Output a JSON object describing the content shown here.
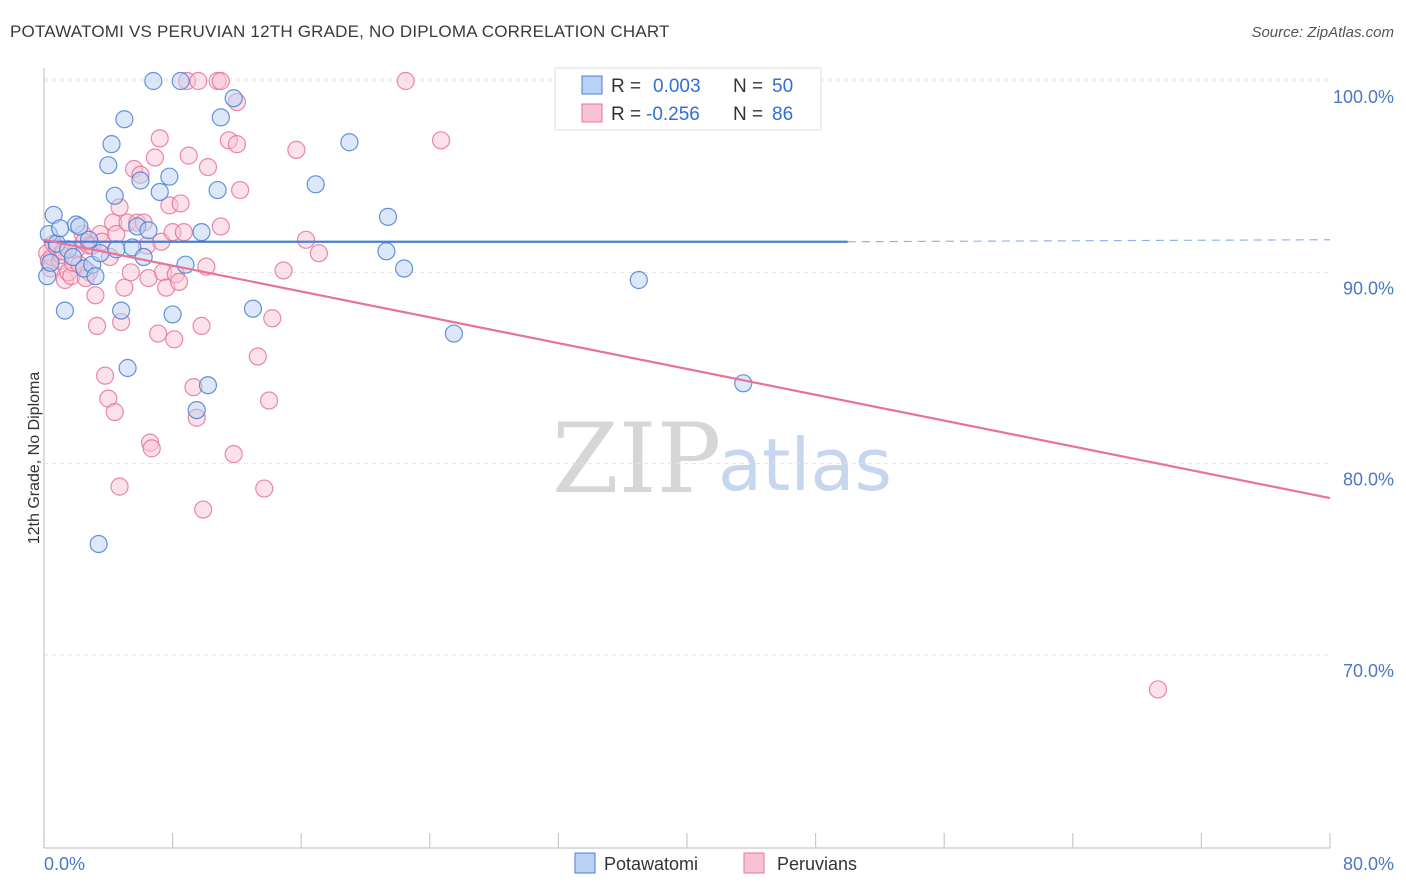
{
  "header": {
    "title": "POTAWATOMI VS PERUVIAN 12TH GRADE, NO DIPLOMA CORRELATION CHART",
    "source": "Source: ZipAtlas.com"
  },
  "watermark": {
    "zip": "ZIP",
    "atlas": "atlas"
  },
  "colors": {
    "blue": "#4a7fd4",
    "blue_fill": "#b9d1f2",
    "pink": "#e8739a",
    "pink_fill": "#f7c3d3",
    "tick_label": "#4a78c4"
  },
  "legend": {
    "rows": [
      {
        "r_label": "R =",
        "r_value": "0.003",
        "n_label": "N =",
        "n_value": "50"
      },
      {
        "r_label": "R =",
        "r_value": "-0.256",
        "n_label": "N =",
        "n_value": "86"
      }
    ]
  },
  "bottom_legend": {
    "series1": "Potawatomi",
    "series2": "Peruvians"
  },
  "chart_data": {
    "type": "scatter",
    "title": "POTAWATOMI VS PERUVIAN 12TH GRADE, NO DIPLOMA CORRELATION CHART",
    "xlabel": "",
    "ylabel": "12th Grade, No Diploma",
    "xlim": [
      0,
      80
    ],
    "ylim": [
      60,
      100.5
    ],
    "x_tick_labels": [
      "0.0%",
      "80.0%"
    ],
    "y_ticks": [
      100,
      90,
      80,
      70
    ],
    "y_tick_labels": [
      "100.0%",
      "90.0%",
      "80.0%",
      "70.0%"
    ],
    "grid": true,
    "series": [
      {
        "name": "Potawatomi",
        "r": 0.003,
        "n": 50,
        "trend": {
          "x": [
            0,
            50
          ],
          "y": [
            91.6,
            91.6
          ],
          "dashed_to": 80
        },
        "points": [
          [
            0.2,
            89.8
          ],
          [
            0.3,
            92.0
          ],
          [
            0.4,
            90.5
          ],
          [
            0.6,
            93.0
          ],
          [
            0.8,
            91.5
          ],
          [
            1.0,
            92.3
          ],
          [
            1.3,
            88.0
          ],
          [
            1.5,
            91.2
          ],
          [
            1.8,
            90.8
          ],
          [
            2.0,
            92.5
          ],
          [
            2.2,
            92.4
          ],
          [
            2.5,
            90.2
          ],
          [
            3.0,
            90.4
          ],
          [
            3.2,
            89.8
          ],
          [
            3.5,
            91.0
          ],
          [
            4.0,
            95.6
          ],
          [
            4.2,
            96.7
          ],
          [
            4.4,
            94.0
          ],
          [
            4.5,
            91.2
          ],
          [
            4.8,
            88.0
          ],
          [
            5.0,
            98.0
          ],
          [
            5.2,
            85.0
          ],
          [
            5.5,
            91.3
          ],
          [
            5.8,
            92.4
          ],
          [
            6.0,
            94.8
          ],
          [
            6.2,
            90.8
          ],
          [
            6.8,
            100.0
          ],
          [
            7.2,
            94.2
          ],
          [
            7.8,
            95.0
          ],
          [
            8.0,
            87.8
          ],
          [
            8.5,
            100.0
          ],
          [
            8.8,
            90.4
          ],
          [
            9.5,
            82.8
          ],
          [
            9.8,
            92.1
          ],
          [
            10.2,
            84.1
          ],
          [
            10.8,
            94.3
          ],
          [
            11.0,
            98.1
          ],
          [
            11.8,
            99.1
          ],
          [
            13.0,
            88.1
          ],
          [
            16.9,
            94.6
          ],
          [
            19.0,
            96.8
          ],
          [
            21.3,
            91.1
          ],
          [
            21.4,
            92.9
          ],
          [
            22.4,
            90.2
          ],
          [
            25.5,
            86.8
          ],
          [
            37.0,
            89.6
          ],
          [
            43.5,
            84.2
          ],
          [
            3.4,
            75.8
          ],
          [
            2.8,
            91.7
          ],
          [
            6.5,
            92.2
          ]
        ]
      },
      {
        "name": "Peruvians",
        "r": -0.256,
        "n": 86,
        "trend": {
          "x": [
            0,
            80
          ],
          "y": [
            91.7,
            78.2
          ]
        },
        "points": [
          [
            0.2,
            91.0
          ],
          [
            0.3,
            90.6
          ],
          [
            0.4,
            90.2
          ],
          [
            0.5,
            90.8
          ],
          [
            0.6,
            91.5
          ],
          [
            0.8,
            91.3
          ],
          [
            1.0,
            90.6
          ],
          [
            1.1,
            90.9
          ],
          [
            1.2,
            91.1
          ],
          [
            1.3,
            89.6
          ],
          [
            1.5,
            90.0
          ],
          [
            1.7,
            89.8
          ],
          [
            1.8,
            90.5
          ],
          [
            2.0,
            91.2
          ],
          [
            2.2,
            90.4
          ],
          [
            2.4,
            92.0
          ],
          [
            2.5,
            91.6
          ],
          [
            2.8,
            90.0
          ],
          [
            2.8,
            91.4
          ],
          [
            3.0,
            91.4
          ],
          [
            3.2,
            88.8
          ],
          [
            3.5,
            92.0
          ],
          [
            3.6,
            91.6
          ],
          [
            3.8,
            84.6
          ],
          [
            4.0,
            83.4
          ],
          [
            4.1,
            90.8
          ],
          [
            4.3,
            92.6
          ],
          [
            4.4,
            82.7
          ],
          [
            4.5,
            92.0
          ],
          [
            4.7,
            93.4
          ],
          [
            4.8,
            87.4
          ],
          [
            5.0,
            89.2
          ],
          [
            5.2,
            92.6
          ],
          [
            5.4,
            90.0
          ],
          [
            5.6,
            95.4
          ],
          [
            5.8,
            92.6
          ],
          [
            6.0,
            95.1
          ],
          [
            6.2,
            92.6
          ],
          [
            6.4,
            91.4
          ],
          [
            6.5,
            89.7
          ],
          [
            6.6,
            81.1
          ],
          [
            6.7,
            80.8
          ],
          [
            6.9,
            96.0
          ],
          [
            7.1,
            86.8
          ],
          [
            7.2,
            97.0
          ],
          [
            7.3,
            91.6
          ],
          [
            7.4,
            90.0
          ],
          [
            7.6,
            89.2
          ],
          [
            7.8,
            93.5
          ],
          [
            8.0,
            92.1
          ],
          [
            8.1,
            86.5
          ],
          [
            8.2,
            89.9
          ],
          [
            8.4,
            89.5
          ],
          [
            8.5,
            93.6
          ],
          [
            8.7,
            92.1
          ],
          [
            8.9,
            100.0
          ],
          [
            9.0,
            96.1
          ],
          [
            9.3,
            84.0
          ],
          [
            9.5,
            82.4
          ],
          [
            9.6,
            100.0
          ],
          [
            9.8,
            87.2
          ],
          [
            10.1,
            90.3
          ],
          [
            10.2,
            95.5
          ],
          [
            10.8,
            100.0
          ],
          [
            11.0,
            100.0
          ],
          [
            11.5,
            96.9
          ],
          [
            11.8,
            80.5
          ],
          [
            12.0,
            96.7
          ],
          [
            12.2,
            94.3
          ],
          [
            13.3,
            85.6
          ],
          [
            13.7,
            78.7
          ],
          [
            14.2,
            87.6
          ],
          [
            14.9,
            90.1
          ],
          [
            15.7,
            96.4
          ],
          [
            16.3,
            91.7
          ],
          [
            17.1,
            91.0
          ],
          [
            22.5,
            100.0
          ],
          [
            24.7,
            96.9
          ],
          [
            69.3,
            68.2
          ],
          [
            12.0,
            98.9
          ],
          [
            14.0,
            83.3
          ],
          [
            9.9,
            77.6
          ],
          [
            4.7,
            78.8
          ],
          [
            11.0,
            92.4
          ],
          [
            3.3,
            87.2
          ],
          [
            2.6,
            89.7
          ]
        ]
      }
    ]
  }
}
